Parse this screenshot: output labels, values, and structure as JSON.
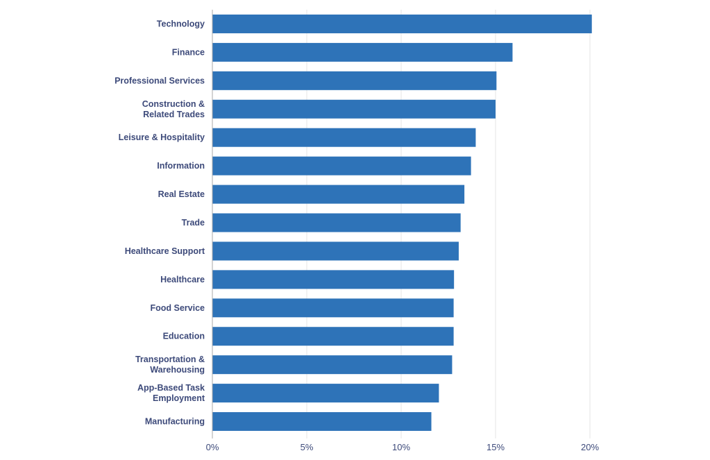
{
  "chart_data": {
    "type": "bar",
    "orientation": "horizontal",
    "title": "",
    "xlabel": "",
    "ylabel": "",
    "xlim": [
      0,
      20
    ],
    "xticks": [
      0,
      5,
      10,
      15,
      20
    ],
    "xtick_labels": [
      "0%",
      "5%",
      "10%",
      "15%",
      "20%"
    ],
    "grid": true,
    "bar_color": "#2e73b8",
    "categories": [
      [
        "Technology"
      ],
      [
        "Finance"
      ],
      [
        "Professional Services"
      ],
      [
        "Construction &",
        "Related Trades"
      ],
      [
        "Leisure & Hospitality"
      ],
      [
        "Information"
      ],
      [
        "Real Estate"
      ],
      [
        "Trade"
      ],
      [
        "Healthcare Support"
      ],
      [
        "Healthcare"
      ],
      [
        "Food Service"
      ],
      [
        "Education"
      ],
      [
        "Transportation &",
        "Warehousing"
      ],
      [
        "App-Based Task",
        "Employment"
      ],
      [
        "Manufacturing"
      ]
    ],
    "values": [
      20.1,
      15.9,
      15.05,
      15.0,
      13.95,
      13.7,
      13.35,
      13.15,
      13.05,
      12.8,
      12.78,
      12.78,
      12.7,
      12.0,
      11.6
    ]
  }
}
